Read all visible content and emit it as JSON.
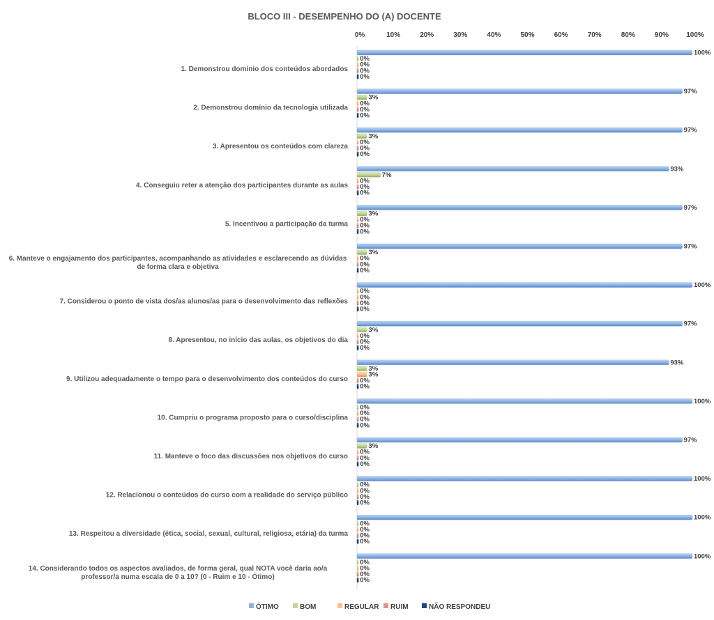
{
  "chart_data": {
    "type": "bar",
    "orientation": "horizontal",
    "title": "BLOCO III - DESEMPENHO DO (A) DOCENTE",
    "xlabel": "",
    "ylabel": "",
    "xlim": [
      0,
      100
    ],
    "x_ticks": [
      "0%",
      "10%",
      "20%",
      "30%",
      "40%",
      "50%",
      "60%",
      "70%",
      "80%",
      "90%",
      "100%"
    ],
    "x_axis_position": "top",
    "grid": false,
    "legend_position": "bottom",
    "categories": [
      "1. Demonstrou domínio dos conteúdos abordados",
      "2. Demonstrou domínio da tecnologia utilizada",
      "3. Apresentou os conteúdos com clareza",
      "4. Conseguiu reter a atenção dos participantes durante as aulas",
      "5. Incentivou a participação da turma",
      "6. Manteve o engajamento dos participantes, acompanhando as atividades e esclarecendo as dúvidas de forma clara e objetiva",
      "7. Considerou o ponto de vista dos/as alunos/as para o desenvolvimento das reflexões",
      "8. Apresentou, no início das aulas, os objetivos do dia",
      "9. Utilizou adequadamente o tempo para o desenvolvimento dos conteúdos do curso",
      "10. Cumpriu o programa proposto para o curso/disciplina",
      "11. Manteve o foco das discussões nos objetivos do curso",
      "12. Relacionou o conteúdos do curso com a realidade do serviço público",
      "13. Respeitou a diversidade (ética, social, sexual, cultural, religiosa, etária) da turma",
      "14. Considerando todos os aspectos avaliados, de forma geral, qual NOTA você daria ao/a professor/a numa escala de 0 a 10? (0 - Ruim e 10 - Ótimo)"
    ],
    "category_lines": [
      [
        "1. Demonstrou domínio dos conteúdos abordados"
      ],
      [
        "2. Demonstrou domínio da tecnologia utilizada"
      ],
      [
        "3. Apresentou os conteúdos com clareza"
      ],
      [
        "4. Conseguiu reter a atenção dos participantes durante as aulas"
      ],
      [
        "5. Incentivou a participação da turma"
      ],
      [
        "6. Manteve o engajamento dos participantes, acompanhando as atividades e esclarecendo as dúvidas",
        "de forma clara e objetiva"
      ],
      [
        "7. Considerou o ponto de vista dos/as alunos/as para o desenvolvimento das reflexões"
      ],
      [
        "8. Apresentou, no início das aulas, os objetivos do dia"
      ],
      [
        "9. Utilizou adequadamente o tempo para o desenvolvimento dos conteúdos do curso"
      ],
      [
        "10. Cumpriu o programa proposto para o curso/disciplina"
      ],
      [
        "11. Manteve o foco das discussões nos objetivos do curso"
      ],
      [
        "12. Relacionou o conteúdos do curso com a realidade do serviço público"
      ],
      [
        "13. Respeitou a diversidade (ética, social, sexual, cultural, religiosa, etária) da turma"
      ],
      [
        "14. Considerando todos os aspectos avaliados, de forma geral, qual NOTA você daria ao/a",
        "professor/a numa escala de 0 a 10? (0 - Ruim e 10 - Ótimo)"
      ]
    ],
    "series": [
      {
        "name": "ÓTIMO",
        "color": "#8EB4E3",
        "values": [
          100,
          97,
          97,
          93,
          97,
          97,
          100,
          97,
          93,
          100,
          97,
          100,
          100,
          100
        ]
      },
      {
        "name": "BOM",
        "color": "#C3D69B",
        "values": [
          0,
          3,
          3,
          7,
          3,
          3,
          0,
          3,
          3,
          0,
          3,
          0,
          0,
          0
        ]
      },
      {
        "name": "REGULAR",
        "color": "#FAC090",
        "values": [
          0,
          0,
          0,
          0,
          0,
          0,
          0,
          0,
          3,
          0,
          0,
          0,
          0,
          0
        ]
      },
      {
        "name": "RUIM",
        "color": "#D99694",
        "values": [
          0,
          0,
          0,
          0,
          0,
          0,
          0,
          0,
          0,
          0,
          0,
          0,
          0,
          0
        ]
      },
      {
        "name": "NÃO RESPONDEU",
        "color": "#1F497D",
        "values": [
          0,
          0,
          0,
          0,
          0,
          0,
          0,
          0,
          0,
          0,
          0,
          0,
          0,
          0
        ]
      }
    ],
    "data_label_suffix": "%"
  }
}
